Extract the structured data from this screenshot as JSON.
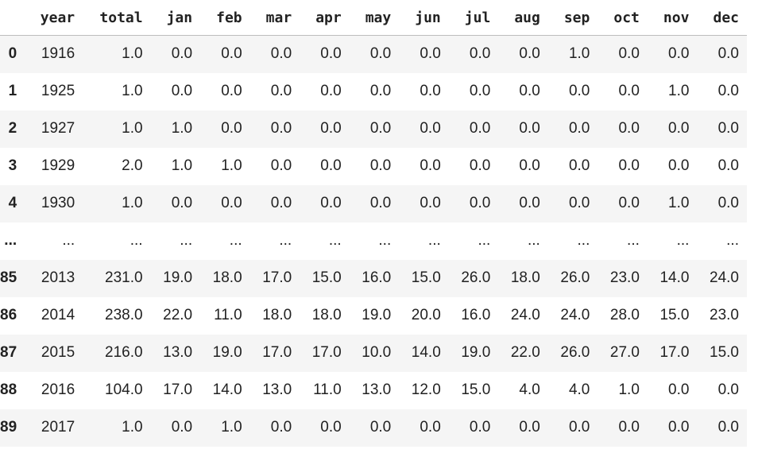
{
  "columns": [
    "year",
    "total",
    "jan",
    "feb",
    "mar",
    "apr",
    "may",
    "jun",
    "jul",
    "aug",
    "sep",
    "oct",
    "nov",
    "dec"
  ],
  "rows": [
    {
      "index": "0",
      "cells": [
        "1916",
        "1.0",
        "0.0",
        "0.0",
        "0.0",
        "0.0",
        "0.0",
        "0.0",
        "0.0",
        "0.0",
        "1.0",
        "0.0",
        "0.0",
        "0.0"
      ]
    },
    {
      "index": "1",
      "cells": [
        "1925",
        "1.0",
        "0.0",
        "0.0",
        "0.0",
        "0.0",
        "0.0",
        "0.0",
        "0.0",
        "0.0",
        "0.0",
        "0.0",
        "1.0",
        "0.0"
      ]
    },
    {
      "index": "2",
      "cells": [
        "1927",
        "1.0",
        "1.0",
        "0.0",
        "0.0",
        "0.0",
        "0.0",
        "0.0",
        "0.0",
        "0.0",
        "0.0",
        "0.0",
        "0.0",
        "0.0"
      ]
    },
    {
      "index": "3",
      "cells": [
        "1929",
        "2.0",
        "1.0",
        "1.0",
        "0.0",
        "0.0",
        "0.0",
        "0.0",
        "0.0",
        "0.0",
        "0.0",
        "0.0",
        "0.0",
        "0.0"
      ]
    },
    {
      "index": "4",
      "cells": [
        "1930",
        "1.0",
        "0.0",
        "0.0",
        "0.0",
        "0.0",
        "0.0",
        "0.0",
        "0.0",
        "0.0",
        "0.0",
        "0.0",
        "1.0",
        "0.0"
      ]
    },
    {
      "index": "...",
      "cells": [
        "...",
        "...",
        "...",
        "...",
        "...",
        "...",
        "...",
        "...",
        "...",
        "...",
        "...",
        "...",
        "...",
        "..."
      ]
    },
    {
      "index": "85",
      "cells": [
        "2013",
        "231.0",
        "19.0",
        "18.0",
        "17.0",
        "15.0",
        "16.0",
        "15.0",
        "26.0",
        "18.0",
        "26.0",
        "23.0",
        "14.0",
        "24.0"
      ]
    },
    {
      "index": "86",
      "cells": [
        "2014",
        "238.0",
        "22.0",
        "11.0",
        "18.0",
        "18.0",
        "19.0",
        "20.0",
        "16.0",
        "24.0",
        "24.0",
        "28.0",
        "15.0",
        "23.0"
      ]
    },
    {
      "index": "87",
      "cells": [
        "2015",
        "216.0",
        "13.0",
        "19.0",
        "17.0",
        "17.0",
        "10.0",
        "14.0",
        "19.0",
        "22.0",
        "26.0",
        "27.0",
        "17.0",
        "15.0"
      ]
    },
    {
      "index": "88",
      "cells": [
        "2016",
        "104.0",
        "17.0",
        "14.0",
        "13.0",
        "11.0",
        "13.0",
        "12.0",
        "15.0",
        "4.0",
        "4.0",
        "1.0",
        "0.0",
        "0.0"
      ]
    },
    {
      "index": "89",
      "cells": [
        "2017",
        "1.0",
        "0.0",
        "1.0",
        "0.0",
        "0.0",
        "0.0",
        "0.0",
        "0.0",
        "0.0",
        "0.0",
        "0.0",
        "0.0",
        "0.0"
      ]
    }
  ]
}
